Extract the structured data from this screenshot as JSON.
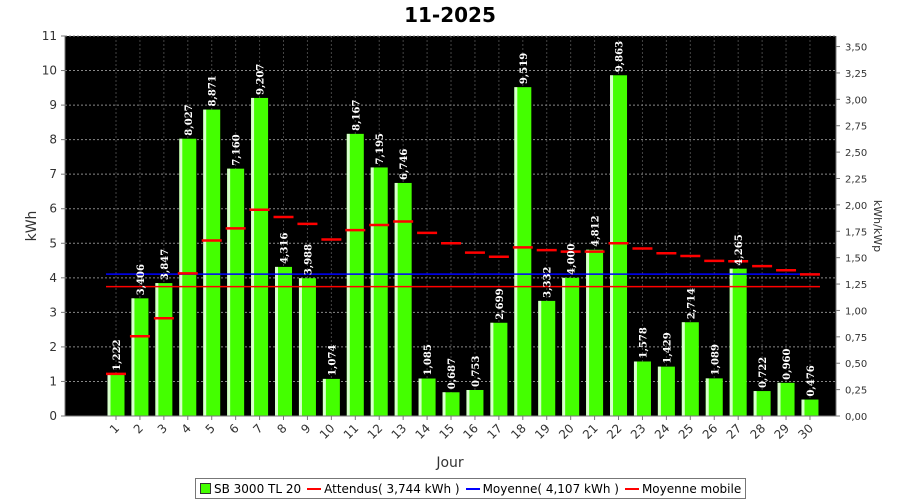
{
  "chart_data": {
    "type": "bar",
    "title": "11-2025",
    "xlabel": "Jour",
    "ylabel": "kWh",
    "y2label": "kWh/kWp",
    "ylim": [
      0,
      11
    ],
    "y2lim": [
      0,
      3.6
    ],
    "yticks": [
      "0",
      "1",
      "2",
      "3",
      "4",
      "5",
      "6",
      "7",
      "8",
      "9",
      "10",
      "11"
    ],
    "y2ticks": [
      "0,00",
      "0,25",
      "0,50",
      "0,75",
      "1,00",
      "1,25",
      "1,50",
      "1,75",
      "2,00",
      "2,25",
      "2,50",
      "2,75",
      "3,00",
      "3,25",
      "3,50"
    ],
    "categories": [
      "1",
      "2",
      "3",
      "4",
      "5",
      "6",
      "7",
      "8",
      "9",
      "10",
      "11",
      "12",
      "13",
      "14",
      "15",
      "16",
      "17",
      "18",
      "19",
      "20",
      "21",
      "22",
      "23",
      "24",
      "25",
      "26",
      "27",
      "28",
      "29",
      "30"
    ],
    "series": [
      {
        "name": "SB 3000 TL 20",
        "type": "bar",
        "values": [
          1.222,
          3.406,
          3.847,
          8.027,
          8.871,
          7.16,
          9.207,
          4.316,
          3.988,
          1.074,
          8.167,
          7.195,
          6.746,
          1.085,
          0.687,
          0.753,
          2.699,
          9.519,
          3.332,
          4.0,
          4.812,
          9.863,
          1.578,
          1.429,
          2.714,
          1.089,
          4.265,
          0.722,
          0.96,
          0.476
        ],
        "labels": [
          "1,222",
          "3,406",
          "3,847",
          "8,027",
          "8,871",
          "7,160",
          "9,207",
          "4,316",
          "3,988",
          "1,074",
          "8,167",
          "7,195",
          "6,746",
          "1,085",
          "0,687",
          "0,753",
          "2,699",
          "9,519",
          "3,332",
          "4,000",
          "4,812",
          "9,863",
          "1,578",
          "1,429",
          "2,714",
          "1,089",
          "4,265",
          "0,722",
          "0,960",
          "0,476"
        ]
      },
      {
        "name": "Moyenne mobile",
        "type": "step-marker",
        "values": [
          1.22,
          2.31,
          2.83,
          4.13,
          5.08,
          5.43,
          5.97,
          5.76,
          5.56,
          5.11,
          5.38,
          5.53,
          5.63,
          5.3,
          5.0,
          4.73,
          4.61,
          4.88,
          4.8,
          4.76,
          4.76,
          5.0,
          4.85,
          4.71,
          4.63,
          4.49,
          4.48,
          4.34,
          4.22,
          4.1
        ]
      }
    ],
    "reference_lines": [
      {
        "name": "Attendus",
        "value": 3.744,
        "color": "#ff0000"
      },
      {
        "name": "Moyenne",
        "value": 4.107,
        "color": "#0000ff"
      }
    ],
    "legend": {
      "placement": "bottom",
      "items": [
        {
          "label": "SB 3000 TL 20",
          "kind": "box",
          "color": "#44ff00"
        },
        {
          "label": "Attendus( 3,744 kWh )",
          "kind": "line",
          "color": "#ff0000"
        },
        {
          "label": "Moyenne( 4,107 kWh )",
          "kind": "line",
          "color": "#0000ff"
        },
        {
          "label": "Moyenne mobile",
          "kind": "line",
          "color": "#ff0000"
        }
      ]
    },
    "colors": {
      "plot_background": "#000000",
      "bar": "#44ff00",
      "bar_highlight": "#d8ffcc",
      "grid": "#888888"
    },
    "grid": true
  }
}
